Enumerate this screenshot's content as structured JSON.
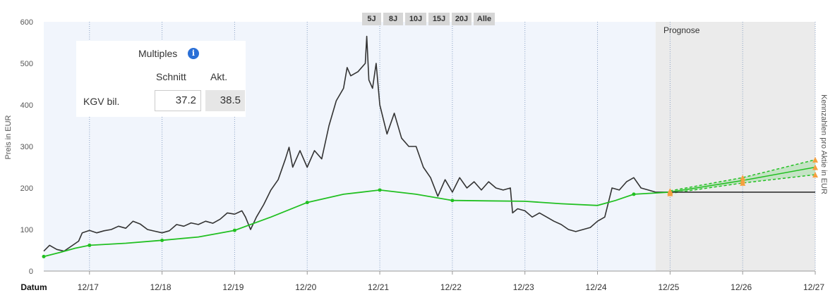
{
  "range_buttons": [
    "5J",
    "8J",
    "10J",
    "15J",
    "20J",
    "Alle"
  ],
  "multiples": {
    "title": "Multiples",
    "info_icon": "info-icon",
    "col_avg": "Schnitt",
    "col_current": "Akt.",
    "row_label": "KGV bil.",
    "avg_value": "37.2",
    "current_value": "38.5"
  },
  "forecast_label": "Prognose",
  "colors": {
    "price_line": "#333333",
    "fair_value_line": "#22c022",
    "forecast_marker": "#f5a040",
    "history_bg": "#f1f5fc",
    "forecast_bg": "#ebebeb"
  },
  "chart_data": {
    "type": "line",
    "ylabel": "Preis in EUR",
    "ylabel_right": "Kennzahlen pro Aktie in EUR",
    "xlabel": "Datum",
    "ylim": [
      0,
      600
    ],
    "y_ticks": [
      0,
      100,
      200,
      300,
      400,
      500,
      600
    ],
    "xlim": [
      2016.37,
      2027.0
    ],
    "x_ticks": [
      {
        "x": 2017.0,
        "label": "12/17"
      },
      {
        "x": 2018.0,
        "label": "12/18"
      },
      {
        "x": 2019.0,
        "label": "12/19"
      },
      {
        "x": 2020.0,
        "label": "12/20"
      },
      {
        "x": 2021.0,
        "label": "12/21"
      },
      {
        "x": 2022.0,
        "label": "12/22"
      },
      {
        "x": 2023.0,
        "label": "12/23"
      },
      {
        "x": 2024.0,
        "label": "12/24"
      },
      {
        "x": 2025.0,
        "label": "12/25"
      },
      {
        "x": 2026.0,
        "label": "12/26"
      },
      {
        "x": 2027.0,
        "label": "12/27"
      }
    ],
    "forecast_start": 2024.8,
    "series": [
      {
        "name": "",
        "points": [
          [
            2016.37,
            48
          ],
          [
            2016.45,
            62
          ],
          [
            2016.55,
            52
          ],
          [
            2016.65,
            48
          ],
          [
            2016.75,
            60
          ],
          [
            2016.85,
            72
          ],
          [
            2016.9,
            92
          ],
          [
            2017.0,
            98
          ],
          [
            2017.1,
            92
          ],
          [
            2017.2,
            97
          ],
          [
            2017.3,
            100
          ],
          [
            2017.4,
            108
          ],
          [
            2017.5,
            103
          ],
          [
            2017.6,
            120
          ],
          [
            2017.7,
            113
          ],
          [
            2017.8,
            100
          ],
          [
            2017.9,
            96
          ],
          [
            2018.0,
            92
          ],
          [
            2018.1,
            97
          ],
          [
            2018.2,
            112
          ],
          [
            2018.3,
            108
          ],
          [
            2018.4,
            116
          ],
          [
            2018.5,
            112
          ],
          [
            2018.6,
            120
          ],
          [
            2018.7,
            115
          ],
          [
            2018.8,
            125
          ],
          [
            2018.9,
            140
          ],
          [
            2019.0,
            137
          ],
          [
            2019.1,
            145
          ],
          [
            2019.15,
            130
          ],
          [
            2019.22,
            100
          ],
          [
            2019.3,
            130
          ],
          [
            2019.4,
            160
          ],
          [
            2019.5,
            195
          ],
          [
            2019.6,
            220
          ],
          [
            2019.7,
            270
          ],
          [
            2019.75,
            298
          ],
          [
            2019.8,
            250
          ],
          [
            2019.9,
            290
          ],
          [
            2020.0,
            250
          ],
          [
            2020.1,
            290
          ],
          [
            2020.2,
            270
          ],
          [
            2020.3,
            350
          ],
          [
            2020.4,
            410
          ],
          [
            2020.5,
            440
          ],
          [
            2020.55,
            490
          ],
          [
            2020.6,
            470
          ],
          [
            2020.7,
            480
          ],
          [
            2020.8,
            500
          ],
          [
            2020.82,
            565
          ],
          [
            2020.85,
            460
          ],
          [
            2020.9,
            440
          ],
          [
            2020.95,
            500
          ],
          [
            2021.0,
            400
          ],
          [
            2021.1,
            330
          ],
          [
            2021.2,
            380
          ],
          [
            2021.3,
            320
          ],
          [
            2021.4,
            300
          ],
          [
            2021.5,
            300
          ],
          [
            2021.6,
            250
          ],
          [
            2021.7,
            225
          ],
          [
            2021.8,
            180
          ],
          [
            2021.9,
            220
          ],
          [
            2022.0,
            190
          ],
          [
            2022.1,
            225
          ],
          [
            2022.2,
            200
          ],
          [
            2022.3,
            215
          ],
          [
            2022.4,
            195
          ],
          [
            2022.5,
            215
          ],
          [
            2022.6,
            200
          ],
          [
            2022.7,
            195
          ],
          [
            2022.8,
            200
          ],
          [
            2022.83,
            140
          ],
          [
            2022.9,
            150
          ],
          [
            2023.0,
            145
          ],
          [
            2023.1,
            130
          ],
          [
            2023.2,
            140
          ],
          [
            2023.3,
            130
          ],
          [
            2023.4,
            120
          ],
          [
            2023.5,
            112
          ],
          [
            2023.6,
            100
          ],
          [
            2023.7,
            95
          ],
          [
            2023.8,
            100
          ],
          [
            2023.9,
            105
          ],
          [
            2024.0,
            120
          ],
          [
            2024.1,
            130
          ],
          [
            2024.2,
            200
          ],
          [
            2024.3,
            195
          ],
          [
            2024.4,
            215
          ],
          [
            2024.5,
            225
          ],
          [
            2024.6,
            200
          ],
          [
            2024.7,
            195
          ],
          [
            2024.8,
            190
          ]
        ]
      },
      {
        "name": "",
        "points": [
          [
            2016.37,
            35
          ],
          [
            2016.6,
            45
          ],
          [
            2016.8,
            55
          ],
          [
            2017.0,
            62
          ],
          [
            2017.5,
            67
          ],
          [
            2018.0,
            74
          ],
          [
            2018.5,
            82
          ],
          [
            2019.0,
            98
          ],
          [
            2019.5,
            130
          ],
          [
            2020.0,
            165
          ],
          [
            2020.5,
            185
          ],
          [
            2021.0,
            195
          ],
          [
            2021.5,
            185
          ],
          [
            2022.0,
            170
          ],
          [
            2022.5,
            169
          ],
          [
            2023.0,
            168
          ],
          [
            2023.5,
            162
          ],
          [
            2024.0,
            158
          ],
          [
            2024.25,
            170
          ],
          [
            2024.5,
            185
          ],
          [
            2024.8,
            188
          ],
          [
            2025.0,
            190
          ]
        ]
      }
    ],
    "forecast": {
      "base": [
        2025.0,
        190
      ],
      "flat_value": 190,
      "estimates": [
        {
          "x": 2025.0,
          "low": 187,
          "mid": 190,
          "high": 193
        },
        {
          "x": 2026.0,
          "low": 212,
          "mid": 218,
          "high": 225
        },
        {
          "x": 2027.0,
          "low": 232,
          "mid": 250,
          "high": 268
        }
      ]
    },
    "legend": "none",
    "grid": "vertical dotted lines at year ticks"
  }
}
